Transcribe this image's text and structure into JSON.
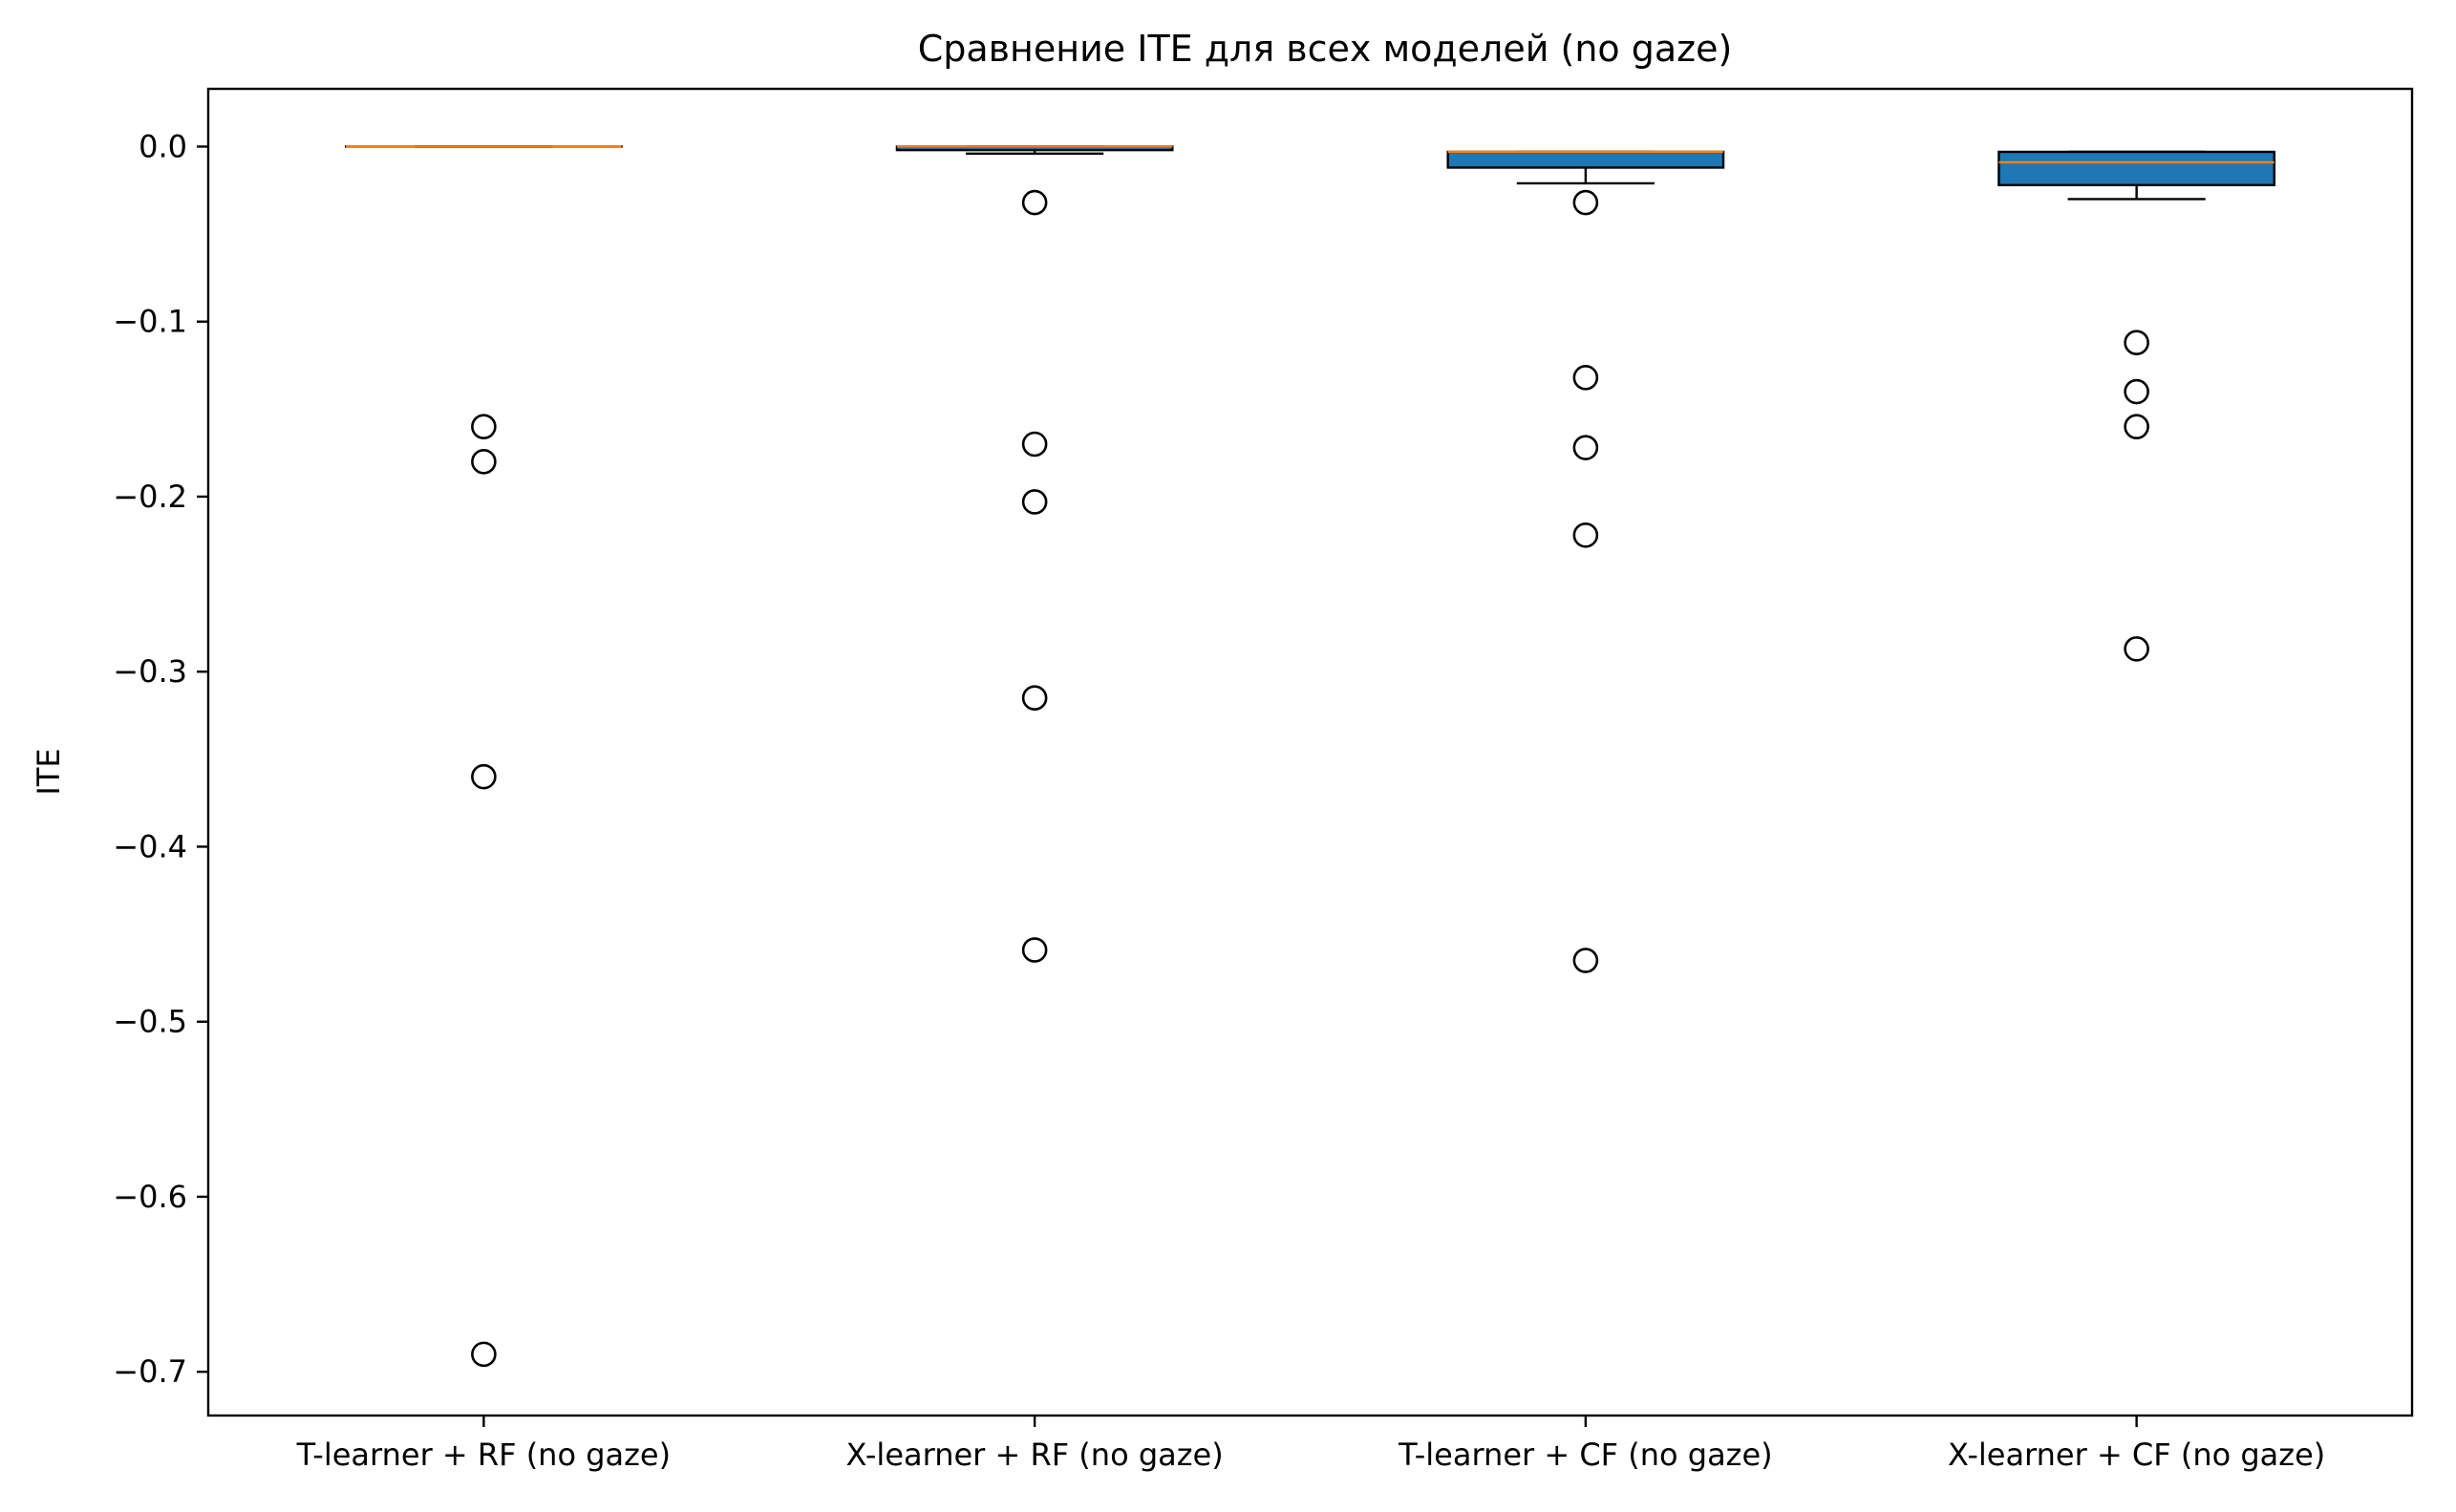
{
  "chart_data": {
    "type": "boxplot",
    "title": "Сравнение ITE для всех моделей  (no gaze)",
    "xlabel": "",
    "ylabel": "ITE",
    "ylim": [
      -0.725,
      0.033
    ],
    "yticks": [
      0.0,
      -0.1,
      -0.2,
      -0.3,
      -0.4,
      -0.5,
      -0.6,
      -0.7
    ],
    "ytick_labels": [
      "0.0",
      "−0.1",
      "−0.2",
      "−0.3",
      "−0.4",
      "−0.5",
      "−0.6",
      "−0.7"
    ],
    "grid": false,
    "legend": false,
    "colors": {
      "box_fill": "#1f77b4",
      "median": "#ff7f0e",
      "edge": "#000000"
    },
    "categories": [
      "T-learner + RF (no gaze)",
      "X-learner + RF (no gaze)",
      "T-learner + CF (no gaze)",
      "X-learner + CF (no gaze)"
    ],
    "boxes": [
      {
        "name": "T-learner + RF (no gaze)",
        "whislo": 0.0,
        "q1": 0.0,
        "med": 0.0,
        "q3": 0.0,
        "whishi": 0.0,
        "fliers": [
          -0.16,
          -0.18,
          -0.36,
          -0.69
        ]
      },
      {
        "name": "X-learner + RF (no gaze)",
        "whislo": -0.004,
        "q1": -0.002,
        "med": 0.0,
        "q3": 0.0,
        "whishi": 0.0,
        "fliers": [
          -0.032,
          -0.17,
          -0.203,
          -0.315,
          -0.459
        ]
      },
      {
        "name": "T-learner + CF (no gaze)",
        "whislo": -0.021,
        "q1": -0.012,
        "med": -0.003,
        "q3": -0.003,
        "whishi": -0.003,
        "fliers": [
          -0.032,
          -0.132,
          -0.172,
          -0.222,
          -0.465
        ]
      },
      {
        "name": "X-learner + CF (no gaze)",
        "whislo": -0.03,
        "q1": -0.022,
        "med": -0.009,
        "q3": -0.003,
        "whishi": -0.003,
        "fliers": [
          -0.112,
          -0.14,
          -0.16,
          -0.287
        ]
      }
    ]
  }
}
